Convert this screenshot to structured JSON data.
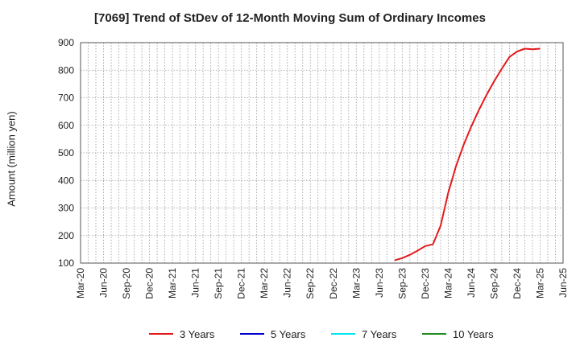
{
  "chart_data": {
    "type": "line",
    "title": "[7069]  Trend of StDev of 12-Month Moving Sum of Ordinary Incomes",
    "ylabel": "Amount (million yen)",
    "xlabel": "",
    "ylim": [
      100,
      900
    ],
    "yticks": [
      100,
      200,
      300,
      400,
      500,
      600,
      700,
      800,
      900
    ],
    "x_tick_labels": [
      "Mar-20",
      "Jun-20",
      "Sep-20",
      "Dec-20",
      "Mar-21",
      "Jun-21",
      "Sep-21",
      "Dec-21",
      "Mar-22",
      "Jun-22",
      "Sep-22",
      "Dec-22",
      "Mar-23",
      "Jun-23",
      "Sep-23",
      "Dec-23",
      "Mar-24",
      "Jun-24",
      "Sep-24",
      "Dec-24",
      "Mar-25",
      "Jun-25"
    ],
    "grid": true,
    "legend_position": "bottom",
    "series": [
      {
        "name": "3 Years",
        "color": "#e31a1c",
        "x": [
          "Aug-23",
          "Sep-23",
          "Oct-23",
          "Nov-23",
          "Dec-23",
          "Jan-24",
          "Feb-24",
          "Mar-24",
          "Apr-24",
          "May-24",
          "Jun-24",
          "Jul-24",
          "Aug-24",
          "Sep-24",
          "Oct-24",
          "Nov-24",
          "Dec-24",
          "Jan-25",
          "Feb-25",
          "Mar-25"
        ],
        "values": [
          110,
          118,
          130,
          145,
          162,
          168,
          235,
          355,
          450,
          528,
          595,
          655,
          710,
          760,
          805,
          848,
          868,
          878,
          876,
          878
        ]
      },
      {
        "name": "5 Years",
        "color": "#0000cc",
        "x": [],
        "values": []
      },
      {
        "name": "7 Years",
        "color": "#00e5ee",
        "x": [],
        "values": []
      },
      {
        "name": "10 Years",
        "color": "#228b22",
        "x": [],
        "values": []
      }
    ]
  }
}
